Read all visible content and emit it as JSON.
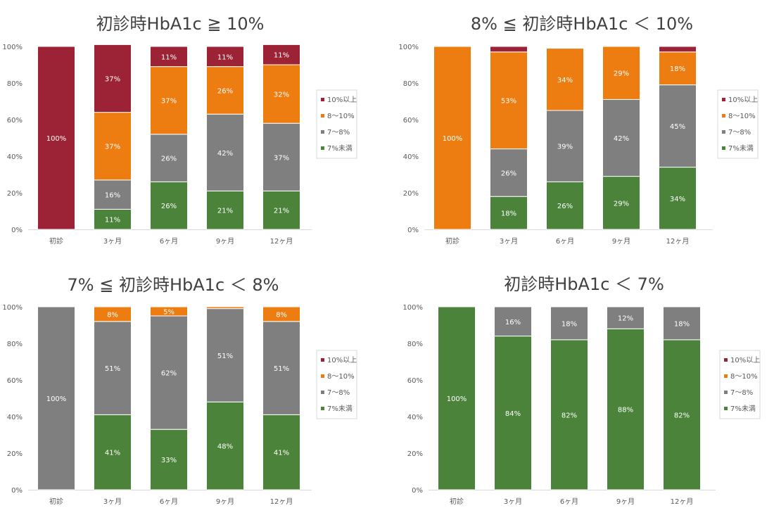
{
  "legend_labels": [
    "10%以上",
    "8～10%",
    "7～8%",
    "7%未満"
  ],
  "colors": {
    "s10": "#9B2335",
    "s8": "#ED7D10",
    "s7": "#7F7F7F",
    "s0": "#4A8339"
  },
  "chart_data": [
    {
      "type": "bar",
      "stacked": true,
      "title": "初診時HbA1c ≧ 10%",
      "categories": [
        "初診",
        "3ヶ月",
        "6ヶ月",
        "9ヶ月",
        "12ヶ月"
      ],
      "yticks": [
        "0%",
        "20%",
        "40%",
        "60%",
        "80%",
        "100%"
      ],
      "ylim": [
        0,
        100
      ],
      "legend_position": "right",
      "series": [
        {
          "name": "7%未満",
          "values": [
            0,
            11,
            26,
            21,
            21
          ],
          "labels": [
            "",
            "11%",
            "26%",
            "21%",
            "21%"
          ]
        },
        {
          "name": "7～8%",
          "values": [
            0,
            16,
            26,
            42,
            37
          ],
          "labels": [
            "",
            "16%",
            "26%",
            "42%",
            "37%"
          ]
        },
        {
          "name": "8～10%",
          "values": [
            0,
            37,
            37,
            26,
            32
          ],
          "labels": [
            "",
            "37%",
            "37%",
            "26%",
            "32%"
          ]
        },
        {
          "name": "10%以上",
          "values": [
            100,
            37,
            11,
            11,
            11
          ],
          "labels": [
            "100%",
            "37%",
            "11%",
            "11%",
            "11%"
          ]
        }
      ]
    },
    {
      "type": "bar",
      "stacked": true,
      "title": "8% ≦ 初診時HbA1c ＜ 10%",
      "categories": [
        "初診",
        "3ヶ月",
        "6ヶ月",
        "9ヶ月",
        "12ヶ月"
      ],
      "yticks": [
        "0%",
        "20%",
        "40%",
        "60%",
        "80%",
        "100%"
      ],
      "ylim": [
        0,
        100
      ],
      "legend_position": "right",
      "series": [
        {
          "name": "7%未満",
          "values": [
            0,
            18,
            26,
            29,
            34
          ],
          "labels": [
            "",
            "18%",
            "26%",
            "29%",
            "34%"
          ]
        },
        {
          "name": "7～8%",
          "values": [
            0,
            26,
            39,
            42,
            45
          ],
          "labels": [
            "",
            "26%",
            "39%",
            "42%",
            "45%"
          ]
        },
        {
          "name": "8～10%",
          "values": [
            100,
            53,
            34,
            29,
            18
          ],
          "labels": [
            "100%",
            "53%",
            "34%",
            "29%",
            "18%"
          ]
        },
        {
          "name": "10%以上",
          "values": [
            0,
            3,
            0,
            0,
            3
          ],
          "labels": [
            "",
            "",
            "",
            "",
            ""
          ]
        }
      ]
    },
    {
      "type": "bar",
      "stacked": true,
      "title": "7% ≦ 初診時HbA1c ＜ 8%",
      "categories": [
        "初診",
        "3ヶ月",
        "6ヶ月",
        "9ヶ月",
        "12ヶ月"
      ],
      "yticks": [
        "0%",
        "20%",
        "40%",
        "60%",
        "80%",
        "100%"
      ],
      "ylim": [
        0,
        100
      ],
      "legend_position": "right",
      "series": [
        {
          "name": "7%未満",
          "values": [
            0,
            41,
            33,
            48,
            41
          ],
          "labels": [
            "",
            "41%",
            "33%",
            "48%",
            "41%"
          ]
        },
        {
          "name": "7～8%",
          "values": [
            100,
            51,
            62,
            51,
            51
          ],
          "labels": [
            "100%",
            "51%",
            "62%",
            "51%",
            "51%"
          ]
        },
        {
          "name": "8～10%",
          "values": [
            0,
            8,
            5,
            1,
            8
          ],
          "labels": [
            "",
            "8%",
            "5%",
            "",
            "8%"
          ]
        },
        {
          "name": "10%以上",
          "values": [
            0,
            0,
            0,
            0,
            0
          ],
          "labels": [
            "",
            "",
            "",
            "",
            ""
          ]
        }
      ]
    },
    {
      "type": "bar",
      "stacked": true,
      "title": "初診時HbA1c ＜ 7%",
      "categories": [
        "初診",
        "3ヶ月",
        "6ヶ月",
        "9ヶ月",
        "12ヶ月"
      ],
      "yticks": [
        "0%",
        "20%",
        "40%",
        "60%",
        "80%",
        "100%"
      ],
      "ylim": [
        0,
        100
      ],
      "legend_position": "right",
      "series": [
        {
          "name": "7%未満",
          "values": [
            100,
            84,
            82,
            88,
            82
          ],
          "labels": [
            "100%",
            "84%",
            "82%",
            "88%",
            "82%"
          ]
        },
        {
          "name": "7～8%",
          "values": [
            0,
            16,
            18,
            12,
            18
          ],
          "labels": [
            "",
            "16%",
            "18%",
            "12%",
            "18%"
          ]
        },
        {
          "name": "8～10%",
          "values": [
            0,
            0,
            0,
            0,
            0
          ],
          "labels": [
            "",
            "",
            "",
            "",
            ""
          ]
        },
        {
          "name": "10%以上",
          "values": [
            0,
            0,
            0,
            0,
            0
          ],
          "labels": [
            "",
            "",
            "",
            "",
            ""
          ]
        }
      ]
    }
  ]
}
